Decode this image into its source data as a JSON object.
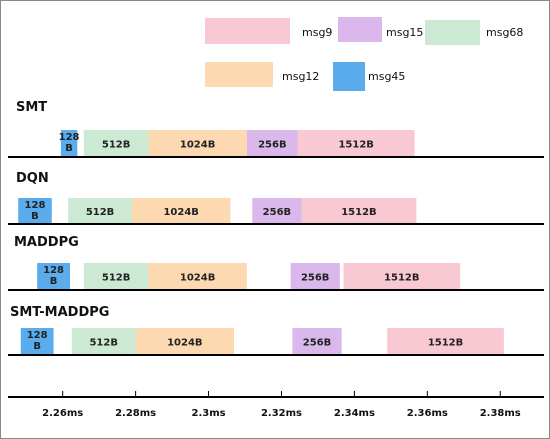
{
  "colors": {
    "msg9": "#f9c9d3",
    "msg15": "#dab8ec",
    "msg68": "#cce9d4",
    "msg12": "#fcd9b1",
    "msg45": "#5aacec"
  },
  "legend": [
    {
      "key": "msg9",
      "label": "msg9"
    },
    {
      "key": "msg15",
      "label": "msg15"
    },
    {
      "key": "msg68",
      "label": "msg68"
    },
    {
      "key": "msg12",
      "label": "msg12"
    },
    {
      "key": "msg45",
      "label": "msg45"
    }
  ],
  "rows": [
    {
      "title": "SMT",
      "blocks": [
        {
          "msg": "msg45",
          "start": 2.2595,
          "end": 2.264,
          "label_lines": [
            "128",
            "B"
          ]
        },
        {
          "msg": "msg68",
          "start": 2.2658,
          "end": 2.2835,
          "label_lines": [
            "512B"
          ]
        },
        {
          "msg": "msg12",
          "start": 2.2835,
          "end": 2.3105,
          "label_lines": [
            "1024B"
          ]
        },
        {
          "msg": "msg15",
          "start": 2.3105,
          "end": 2.3245,
          "label_lines": [
            "256B"
          ]
        },
        {
          "msg": "msg9",
          "start": 2.3245,
          "end": 2.3565,
          "label_lines": [
            "1512B"
          ]
        }
      ]
    },
    {
      "title": "DQN",
      "blocks": [
        {
          "msg": "msg45",
          "start": 2.2478,
          "end": 2.257,
          "label_lines": [
            "128",
            "B"
          ]
        },
        {
          "msg": "msg68",
          "start": 2.2615,
          "end": 2.279,
          "label_lines": [
            "512B"
          ]
        },
        {
          "msg": "msg12",
          "start": 2.279,
          "end": 2.306,
          "label_lines": [
            "1024B"
          ]
        },
        {
          "msg": "msg15",
          "start": 2.312,
          "end": 2.3255,
          "label_lines": [
            "256B"
          ]
        },
        {
          "msg": "msg9",
          "start": 2.3255,
          "end": 2.357,
          "label_lines": [
            "1512B"
          ]
        }
      ]
    },
    {
      "title": "MADDPG",
      "blocks": [
        {
          "msg": "msg45",
          "start": 2.253,
          "end": 2.262,
          "label_lines": [
            "128",
            "B"
          ]
        },
        {
          "msg": "msg68",
          "start": 2.2658,
          "end": 2.2835,
          "label_lines": [
            "512B"
          ]
        },
        {
          "msg": "msg12",
          "start": 2.2835,
          "end": 2.3105,
          "label_lines": [
            "1024B"
          ]
        },
        {
          "msg": "msg15",
          "start": 2.3225,
          "end": 2.336,
          "label_lines": [
            "256B"
          ]
        },
        {
          "msg": "msg9",
          "start": 2.337,
          "end": 2.369,
          "label_lines": [
            "1512B"
          ]
        }
      ]
    },
    {
      "title": "SMT-MADDPG",
      "blocks": [
        {
          "msg": "msg45",
          "start": 2.2485,
          "end": 2.2575,
          "label_lines": [
            "128",
            "B"
          ]
        },
        {
          "msg": "msg68",
          "start": 2.2625,
          "end": 2.28,
          "label_lines": [
            "512B"
          ]
        },
        {
          "msg": "msg12",
          "start": 2.28,
          "end": 2.307,
          "label_lines": [
            "1024B"
          ]
        },
        {
          "msg": "msg15",
          "start": 2.323,
          "end": 2.3365,
          "label_lines": [
            "256B"
          ]
        },
        {
          "msg": "msg9",
          "start": 2.349,
          "end": 2.381,
          "label_lines": [
            "1512B"
          ]
        }
      ]
    }
  ],
  "axis": {
    "ticks": [
      "2.26ms",
      "2.28ms",
      "2.3ms",
      "2.32ms",
      "2.34ms",
      "2.36ms",
      "2.38ms"
    ],
    "tick_values": [
      2.26,
      2.28,
      2.3,
      2.32,
      2.34,
      2.36,
      2.38
    ],
    "range": [
      2.245,
      2.392
    ]
  }
}
